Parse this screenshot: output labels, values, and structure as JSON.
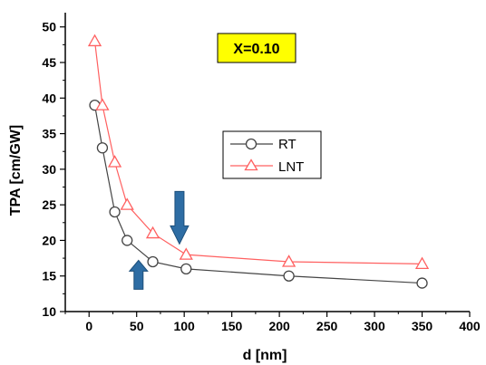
{
  "chart_data": {
    "type": "line",
    "xlabel": "d [nm]",
    "ylabel": "TPA [cm/GW]",
    "xlim": [
      -25,
      400
    ],
    "ylim": [
      10,
      52
    ],
    "x_ticks": [
      0,
      50,
      100,
      150,
      200,
      250,
      300,
      350,
      400
    ],
    "x_tick_labels": [
      "0",
      "50",
      "100",
      "150",
      "200",
      "250",
      "300",
      "350",
      "400"
    ],
    "y_ticks": [
      10,
      15,
      20,
      25,
      30,
      35,
      40,
      45,
      50
    ],
    "y_tick_labels": [
      "10",
      "15",
      "20",
      "25",
      "30",
      "35",
      "40",
      "45",
      "50"
    ],
    "grid": false,
    "legend_position": "center-right",
    "annotation": "X=0.10",
    "annotation_color": "#ffff00",
    "arrow_color": "#2e6da4",
    "arrows": [
      {
        "direction": "down",
        "x": 95,
        "y_tip": 19.5
      },
      {
        "direction": "up",
        "x": 52,
        "y_tip": 17.2
      }
    ],
    "series": [
      {
        "name": "RT",
        "color": "#444444",
        "marker": "circle",
        "x": [
          6,
          14,
          27,
          40,
          67,
          102,
          210,
          350
        ],
        "y": [
          39,
          33,
          24,
          20,
          17,
          16,
          15,
          14
        ]
      },
      {
        "name": "LNT",
        "color": "#ff6060",
        "marker": "triangle",
        "x": [
          6,
          14,
          27,
          40,
          67,
          102,
          210,
          350
        ],
        "y": [
          48,
          39,
          31,
          25,
          21,
          18,
          17,
          16.7
        ]
      }
    ]
  }
}
